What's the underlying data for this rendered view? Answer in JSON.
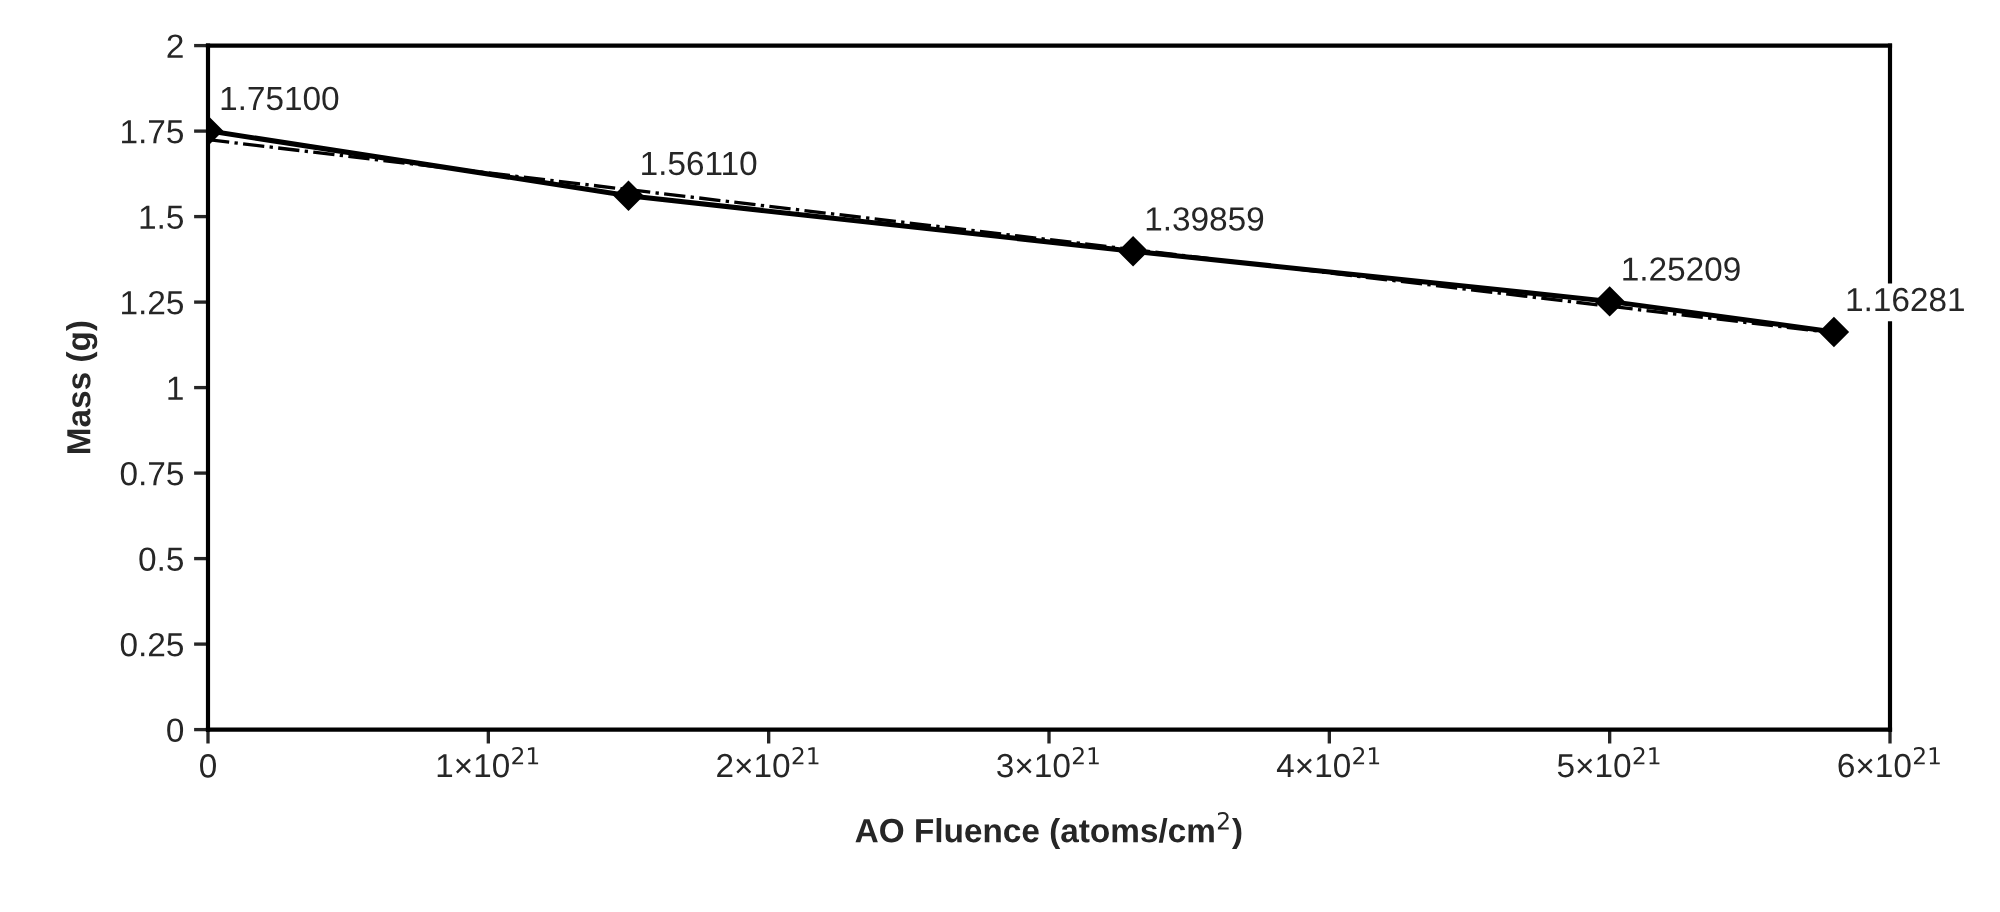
{
  "chart_data": {
    "type": "line",
    "xlabel": "AO Fluence (atoms/cm$^{2}$)",
    "ylabel": "Mass (g)",
    "x": [
      0,
      1.5e+21,
      3.3e+21,
      5e+21,
      5.8e+21
    ],
    "series": [
      {
        "color": "#000000",
        "values": [
          1.751,
          1.5611,
          1.39859,
          1.25209,
          1.16281
        ],
        "value_labels": [
          "1.75100",
          "1.56110",
          "1.39859",
          "1.25209",
          "1.16281"
        ],
        "marker": "diamond",
        "line_style": "solid"
      },
      {
        "type": "line",
        "color": "#000000",
        "x": [
          0,
          5.8e+21
        ],
        "values": [
          1.725,
          1.16
        ],
        "marker": "none",
        "line_style": "dashdot"
      }
    ],
    "xlim": [
      0,
      6e+21
    ],
    "xticks": [
      0,
      {
        "value": 1e+21,
        "label": "1×10$^{21}$"
      },
      {
        "value": 2e+21,
        "label": "2×10$^{21}$"
      },
      {
        "value": 3e+21,
        "label": "3×10$^{21}$"
      },
      {
        "value": 4e+21,
        "label": "4×10$^{21}$"
      },
      {
        "value": 5e+21,
        "label": "5×10$^{21}$"
      },
      {
        "value": 6e+21,
        "label": "6×10$^{21}$"
      }
    ],
    "ylim": [
      0,
      2
    ],
    "yticks": [
      0,
      0.25,
      0.5,
      0.75,
      1,
      1.25,
      1.5,
      1.75,
      2
    ],
    "grid": false,
    "legend": false
  }
}
